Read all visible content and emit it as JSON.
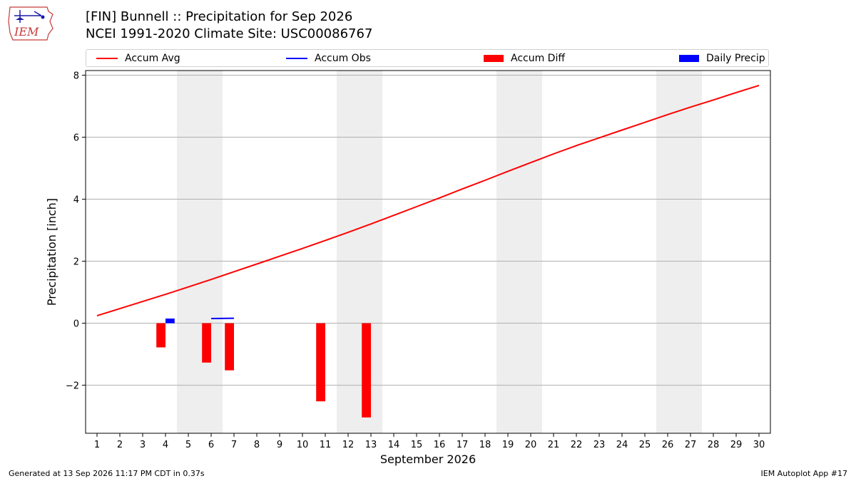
{
  "header": {
    "title_line1": "[FIN] Bunnell :: Precipitation for Sep 2026",
    "title_line2": "NCEI 1991-2020 Climate Site: USC00086767"
  },
  "logo": {
    "text": "IEM"
  },
  "footer": {
    "left": "Generated at 13 Sep 2026 11:17 PM CDT in 0.37s",
    "right": "IEM Autoplot App #17"
  },
  "colors": {
    "accum_avg": "#ff0000",
    "accum_obs": "#0000ff",
    "accum_diff": "#ff0000",
    "daily_precip": "#0000ff",
    "weekend_shade": "#eeeeee",
    "grid": "#b0b0b0"
  },
  "chart_data": {
    "type": "line",
    "xlabel": "September 2026",
    "ylabel": "Precipitation [inch]",
    "xlim": [
      0.5,
      30.5
    ],
    "ylim": [
      -3.55,
      8.15
    ],
    "grid": true,
    "legend_position": "top",
    "x_ticks": [
      1,
      2,
      3,
      4,
      5,
      6,
      7,
      8,
      9,
      10,
      11,
      12,
      13,
      14,
      15,
      16,
      17,
      18,
      19,
      20,
      21,
      22,
      23,
      24,
      25,
      26,
      27,
      28,
      29,
      30
    ],
    "y_ticks": [
      -2,
      0,
      2,
      4,
      6,
      8
    ],
    "y_tick_labels": [
      "−2",
      "0",
      "2",
      "4",
      "6",
      "8"
    ],
    "weekend_shading": [
      [
        4.5,
        6.5
      ],
      [
        11.5,
        13.5
      ],
      [
        18.5,
        20.5
      ],
      [
        25.5,
        27.5
      ]
    ],
    "series": [
      {
        "name": "Accum Avg",
        "kind": "line",
        "color": "#ff0000",
        "x": [
          1,
          2,
          3,
          4,
          5,
          6,
          7,
          8,
          9,
          10,
          11,
          12,
          13,
          14,
          15,
          16,
          17,
          18,
          19,
          20,
          21,
          22,
          23,
          24,
          25,
          26,
          27,
          28,
          29,
          30
        ],
        "values": [
          0.24,
          0.47,
          0.7,
          0.93,
          1.17,
          1.41,
          1.66,
          1.91,
          2.16,
          2.41,
          2.67,
          2.93,
          3.2,
          3.48,
          3.76,
          4.04,
          4.33,
          4.61,
          4.9,
          5.18,
          5.46,
          5.73,
          5.98,
          6.23,
          6.48,
          6.73,
          6.97,
          7.2,
          7.44,
          7.67
        ]
      },
      {
        "name": "Accum Obs",
        "kind": "line",
        "color": "#0000ff",
        "x": [
          6,
          7
        ],
        "values": [
          0.15,
          0.16
        ]
      },
      {
        "name": "Accum Diff",
        "kind": "bar",
        "color": "#ff0000",
        "x": [
          4,
          6,
          7,
          11,
          13
        ],
        "values": [
          -0.78,
          -1.27,
          -1.52,
          -2.52,
          -3.04
        ]
      },
      {
        "name": "Daily Precip",
        "kind": "bar",
        "color": "#0000ff",
        "x": [
          4
        ],
        "values": [
          0.15
        ]
      }
    ]
  }
}
